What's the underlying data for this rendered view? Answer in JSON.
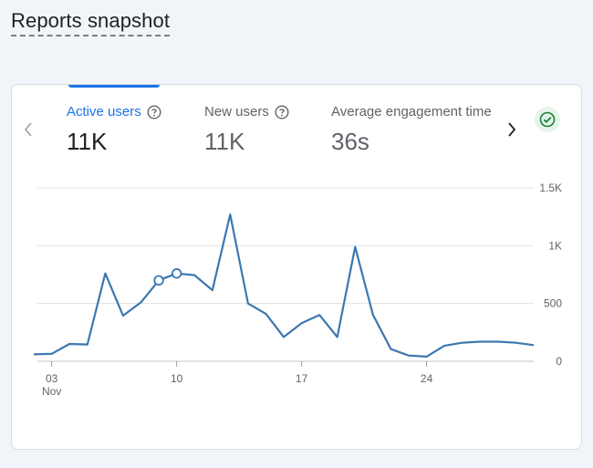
{
  "page": {
    "title": "Reports snapshot"
  },
  "tabs": [
    {
      "label": "Active users",
      "value": "11K",
      "active": true
    },
    {
      "label": "New users",
      "value": "11K",
      "active": false
    },
    {
      "label": "Average engagement time p",
      "value": "36s",
      "active": false
    }
  ],
  "icons": {
    "prev": "chevron-left-icon",
    "next": "chevron-right-icon",
    "help": "help-circle-icon",
    "status": "check-circle-icon"
  },
  "colors": {
    "accent": "#1a73e8",
    "line": "#3b78b0",
    "status_green": "#188038"
  },
  "chart_data": {
    "type": "line",
    "title": "",
    "xlabel": "",
    "ylabel": "",
    "ylim": [
      0,
      1500
    ],
    "y_ticks": [
      "0",
      "500",
      "1K",
      "1.5K"
    ],
    "x_ticks": [
      {
        "label": "03",
        "sub": "Nov",
        "day": 3
      },
      {
        "label": "10",
        "sub": "",
        "day": 10
      },
      {
        "label": "17",
        "sub": "",
        "day": 17
      },
      {
        "label": "24",
        "sub": "",
        "day": 24
      }
    ],
    "grid": true,
    "series": [
      {
        "days": [
          2,
          3,
          4,
          5,
          6,
          7,
          8,
          9,
          10,
          11,
          12,
          13,
          14,
          15,
          16,
          17,
          18,
          19,
          20,
          21,
          22,
          23,
          24,
          25,
          26,
          27,
          28,
          29,
          30
        ],
        "values": [
          60,
          65,
          150,
          145,
          760,
          395,
          510,
          700,
          760,
          745,
          615,
          1270,
          500,
          410,
          210,
          330,
          400,
          210,
          990,
          400,
          105,
          50,
          40,
          135,
          160,
          170,
          170,
          160,
          140
        ],
        "markers_at_days": [
          9,
          10
        ]
      }
    ]
  }
}
